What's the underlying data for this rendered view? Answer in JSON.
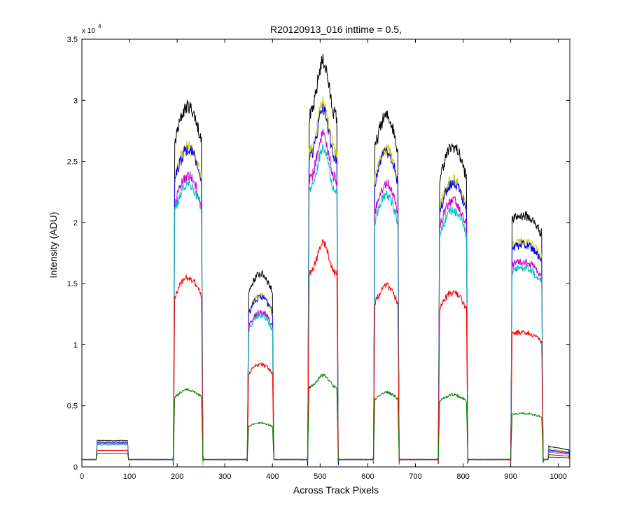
{
  "chart_data": {
    "type": "line",
    "title": "R20120913_016 inttime = 0.5,",
    "xlabel": "Across Track Pixels",
    "ylabel": "Intensity (ADU)",
    "y_exponent_base": "x 10",
    "y_exponent_power": "4",
    "xlim": [
      0,
      1024
    ],
    "ylim": [
      0,
      3.5
    ],
    "xticks": [
      0,
      100,
      200,
      300,
      400,
      500,
      600,
      700,
      800,
      900,
      1000
    ],
    "yticks": [
      0,
      0.5,
      1,
      1.5,
      2,
      2.5,
      3,
      3.5
    ],
    "grid": false,
    "legend": "none",
    "baseline": 0.06,
    "plateaus": [
      {
        "start": 30,
        "end": 98,
        "edge": 2,
        "shape": "flat"
      },
      {
        "start": 192,
        "end": 254,
        "edge": 3,
        "shape": "hump"
      },
      {
        "start": 347,
        "end": 403,
        "edge": 3,
        "shape": "hump"
      },
      {
        "start": 474,
        "end": 538,
        "edge": 3,
        "shape": "peak"
      },
      {
        "start": 612,
        "end": 666,
        "edge": 3,
        "shape": "hump"
      },
      {
        "start": 748,
        "end": 810,
        "edge": 3,
        "shape": "hump"
      },
      {
        "start": 900,
        "end": 968,
        "edge": 3,
        "shape": "slope"
      },
      {
        "start": 978,
        "end": 1024,
        "edge": 2,
        "shape": "tail"
      }
    ],
    "series": [
      {
        "color": "#000000",
        "levels": [
          0.215,
          2.95,
          1.58,
          3.32,
          2.87,
          2.62,
          2.07,
          0.17
        ]
      },
      {
        "color": "#cccc00",
        "levels": [
          0.205,
          2.63,
          1.4,
          2.98,
          2.6,
          2.35,
          1.86,
          0.15
        ]
      },
      {
        "color": "#0000ff",
        "levels": [
          0.2,
          2.6,
          1.39,
          2.92,
          2.58,
          2.32,
          1.83,
          0.14
        ]
      },
      {
        "color": "#cc00cc",
        "levels": [
          0.19,
          2.38,
          1.27,
          2.72,
          2.32,
          2.18,
          1.69,
          0.13
        ]
      },
      {
        "color": "#00bfbf",
        "levels": [
          0.18,
          2.32,
          1.24,
          2.6,
          2.22,
          2.1,
          1.64,
          0.12
        ]
      },
      {
        "color": "#ff0000",
        "levels": [
          0.135,
          1.55,
          0.84,
          1.83,
          1.48,
          1.43,
          1.11,
          0.1
        ]
      },
      {
        "color": "#008000",
        "levels": [
          0.11,
          0.63,
          0.36,
          0.75,
          0.61,
          0.59,
          0.44,
          0.08
        ]
      }
    ]
  }
}
